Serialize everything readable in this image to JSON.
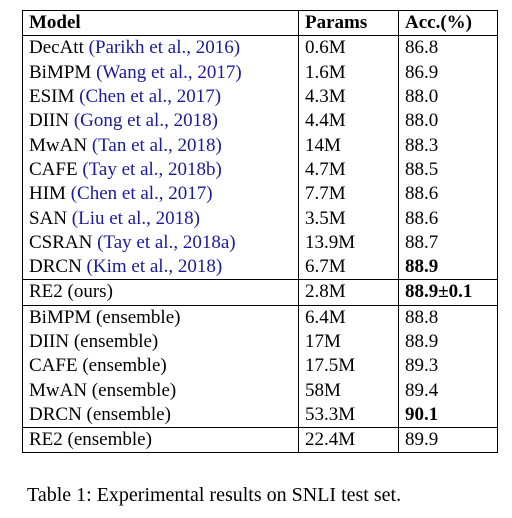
{
  "table": {
    "header": [
      "Model",
      "Params",
      "Acc.(%)"
    ],
    "groups": [
      [
        {
          "model": "DecAtt",
          "cite": "(Parikh et al., 2016)",
          "params": "0.6M",
          "acc": "86.8"
        },
        {
          "model": "BiMPM",
          "cite": "(Wang et al., 2017)",
          "params": "1.6M",
          "acc": "86.9"
        },
        {
          "model": "ESIM",
          "cite": "(Chen et al., 2017)",
          "params": "4.3M",
          "acc": "88.0"
        },
        {
          "model": "DIIN",
          "cite": "(Gong et al., 2018)",
          "params": "4.4M",
          "acc": "88.0"
        },
        {
          "model": "MwAN",
          "cite": "(Tan et al., 2018)",
          "params": "14M",
          "acc": "88.3"
        },
        {
          "model": "CAFE",
          "cite": "(Tay et al., 2018b)",
          "params": "4.7M",
          "acc": "88.5"
        },
        {
          "model": "HIM",
          "cite": "(Chen et al., 2017)",
          "params": "7.7M",
          "acc": "88.6"
        },
        {
          "model": "SAN",
          "cite": "(Liu et al., 2018)",
          "params": "3.5M",
          "acc": "88.6"
        },
        {
          "model": "CSRAN",
          "cite": "(Tay et al., 2018a)",
          "params": "13.9M",
          "acc": "88.7"
        },
        {
          "model": "DRCN",
          "cite": "(Kim et al., 2018)",
          "params": "6.7M",
          "acc": "88.9",
          "bold": true
        }
      ],
      [
        {
          "model": "RE2 (ours)",
          "params": "2.8M",
          "acc": "88.9±0.1",
          "bold": true
        }
      ],
      [
        {
          "model": "BiMPM (ensemble)",
          "params": "6.4M",
          "acc": "88.8"
        },
        {
          "model": "DIIN (ensemble)",
          "params": "17M",
          "acc": "88.9"
        },
        {
          "model": "CAFE (ensemble)",
          "params": "17.5M",
          "acc": "89.3"
        },
        {
          "model": "MwAN (ensemble)",
          "params": "58M",
          "acc": "89.4"
        },
        {
          "model": "DRCN (ensemble)",
          "params": "53.3M",
          "acc": "90.1",
          "bold": true
        }
      ],
      [
        {
          "model": "RE2 (ensemble)",
          "params": "22.4M",
          "acc": "89.9"
        }
      ]
    ]
  },
  "caption": "Table 1: Experimental results on SNLI test set."
}
